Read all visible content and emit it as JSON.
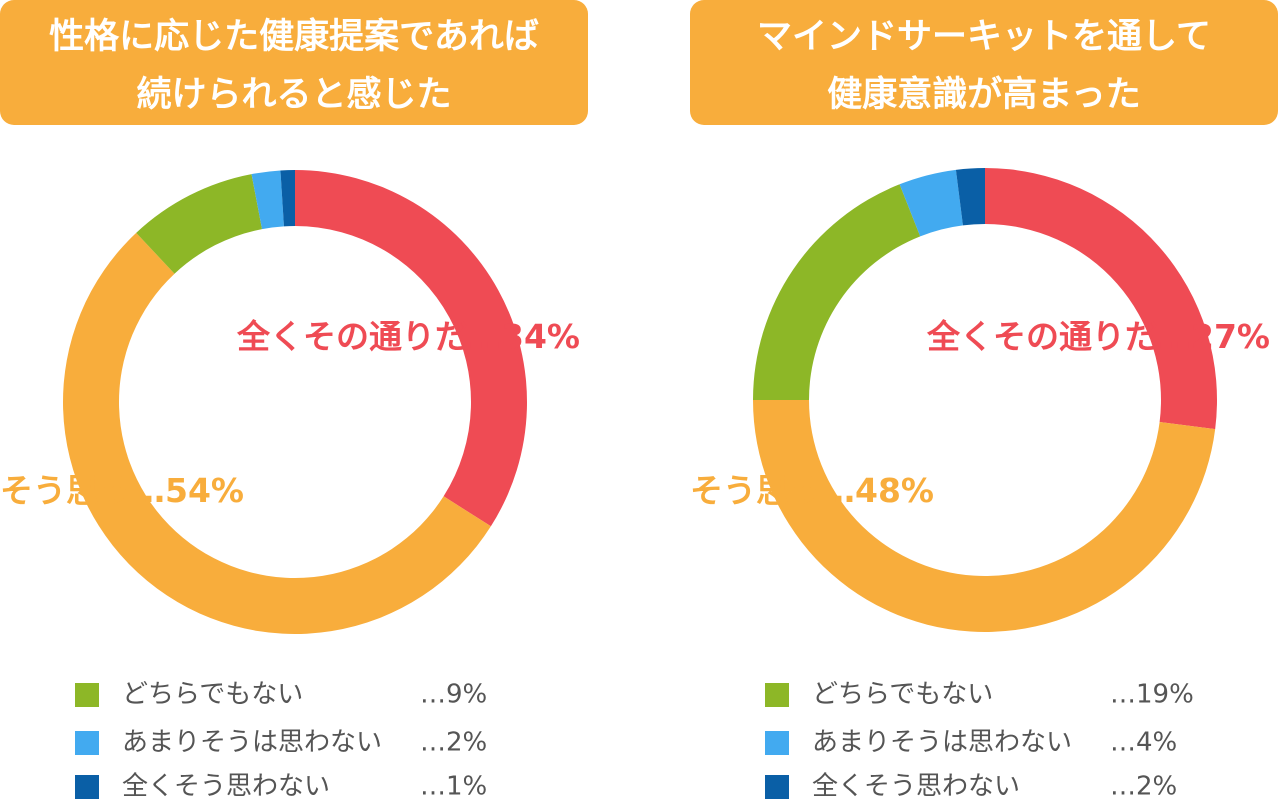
{
  "chart_data": [
    {
      "type": "donut",
      "title": [
        "性格に応じた健康提案であれば",
        "続けられると感じた"
      ],
      "categories": [
        "全くその通りだ",
        "そう思う",
        "どちらでもない",
        "あまりそうは思わない",
        "全くそう思わない"
      ],
      "values": [
        34,
        54,
        9,
        2,
        1
      ],
      "value_labels": [
        "…34%",
        "…54%",
        "…9%",
        "…2%",
        "…1%"
      ],
      "colors": [
        "#ef4b54",
        "#f8ad3c",
        "#8db727",
        "#42aaf0",
        "#0a5fa6"
      ],
      "label_at": [
        "chart",
        "chart",
        "legend",
        "legend",
        "legend"
      ]
    },
    {
      "type": "donut",
      "title": [
        "マインドサーキットを通して",
        "健康意識が高まった"
      ],
      "categories": [
        "全くその通りだ",
        "そう思う",
        "どちらでもない",
        "あまりそうは思わない",
        "全くそう思わない"
      ],
      "values": [
        27,
        48,
        19,
        4,
        2
      ],
      "value_labels": [
        "…27%",
        "…48%",
        "…19%",
        "…4%",
        "…2%"
      ],
      "colors": [
        "#ef4b54",
        "#f8ad3c",
        "#8db727",
        "#42aaf0",
        "#0a5fa6"
      ],
      "label_at": [
        "chart",
        "chart",
        "legend",
        "legend",
        "legend"
      ]
    }
  ]
}
